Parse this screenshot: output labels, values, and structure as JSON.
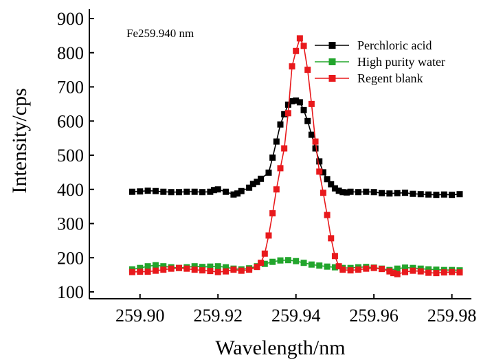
{
  "chart_data": {
    "type": "line",
    "annotation": "Fe259.940 nm",
    "xlabel": "Wavelength/nm",
    "ylabel": "Intensity/cps",
    "xlim": [
      259.887,
      259.985
    ],
    "ylim": [
      100,
      900
    ],
    "x_ticks": [
      "259.90",
      "259.92",
      "259.94",
      "259.96",
      "259.98"
    ],
    "x_tick_values": [
      259.9,
      259.92,
      259.94,
      259.96,
      259.98
    ],
    "y_ticks": [
      "100",
      "200",
      "300",
      "400",
      "500",
      "600",
      "700",
      "800",
      "900"
    ],
    "y_tick_values": [
      100,
      200,
      300,
      400,
      500,
      600,
      700,
      800,
      900
    ],
    "grid": false,
    "legend_position": "top-right",
    "series": [
      {
        "name": "Perchloric acid",
        "color": "#000000",
        "x": [
          259.898,
          259.9,
          259.902,
          259.904,
          259.906,
          259.908,
          259.91,
          259.912,
          259.914,
          259.916,
          259.918,
          259.919,
          259.92,
          259.922,
          259.924,
          259.925,
          259.926,
          259.928,
          259.929,
          259.93,
          259.931,
          259.933,
          259.934,
          259.935,
          259.936,
          259.937,
          259.938,
          259.939,
          259.94,
          259.941,
          259.942,
          259.943,
          259.944,
          259.945,
          259.946,
          259.947,
          259.948,
          259.949,
          259.95,
          259.951,
          259.952,
          259.953,
          259.954,
          259.956,
          259.958,
          259.96,
          259.962,
          259.964,
          259.966,
          259.968,
          259.97,
          259.972,
          259.974,
          259.976,
          259.978,
          259.98,
          259.982
        ],
        "values": [
          393,
          394,
          396,
          395,
          393,
          392,
          392,
          393,
          393,
          392,
          393,
          398,
          400,
          393,
          385,
          388,
          395,
          405,
          416,
          422,
          431,
          449,
          493,
          540,
          590,
          620,
          648,
          658,
          660,
          655,
          632,
          600,
          560,
          520,
          482,
          450,
          430,
          415,
          403,
          396,
          392,
          391,
          393,
          392,
          393,
          392,
          389,
          388,
          389,
          390,
          387,
          386,
          385,
          384,
          385,
          384,
          386
        ]
      },
      {
        "name": "High purity water",
        "color": "#22a52c",
        "x": [
          259.898,
          259.9,
          259.902,
          259.904,
          259.906,
          259.908,
          259.91,
          259.912,
          259.914,
          259.916,
          259.918,
          259.92,
          259.922,
          259.924,
          259.926,
          259.928,
          259.93,
          259.932,
          259.934,
          259.936,
          259.938,
          259.94,
          259.942,
          259.944,
          259.946,
          259.948,
          259.95,
          259.952,
          259.954,
          259.956,
          259.958,
          259.96,
          259.962,
          259.964,
          259.966,
          259.968,
          259.97,
          259.972,
          259.974,
          259.976,
          259.978,
          259.98,
          259.982
        ],
        "values": [
          166,
          170,
          175,
          178,
          175,
          172,
          170,
          172,
          175,
          173,
          174,
          175,
          172,
          168,
          166,
          169,
          175,
          182,
          188,
          192,
          193,
          190,
          185,
          180,
          177,
          174,
          172,
          170,
          170,
          172,
          173,
          171,
          168,
          164,
          168,
          171,
          170,
          168,
          166,
          165,
          164,
          164,
          163
        ]
      },
      {
        "name": "Regent blank",
        "color": "#e8191c",
        "x": [
          259.898,
          259.9,
          259.902,
          259.904,
          259.906,
          259.908,
          259.91,
          259.912,
          259.914,
          259.916,
          259.918,
          259.92,
          259.922,
          259.924,
          259.926,
          259.928,
          259.93,
          259.931,
          259.932,
          259.933,
          259.934,
          259.935,
          259.936,
          259.937,
          259.938,
          259.939,
          259.94,
          259.941,
          259.942,
          259.943,
          259.944,
          259.945,
          259.946,
          259.947,
          259.948,
          259.949,
          259.95,
          259.951,
          259.952,
          259.954,
          259.956,
          259.958,
          259.96,
          259.962,
          259.964,
          259.965,
          259.966,
          259.968,
          259.97,
          259.972,
          259.974,
          259.976,
          259.978,
          259.98,
          259.982
        ],
        "values": [
          158,
          159,
          159,
          162,
          165,
          168,
          170,
          168,
          165,
          163,
          161,
          158,
          160,
          165,
          162,
          165,
          173,
          185,
          212,
          265,
          330,
          400,
          462,
          520,
          623,
          760,
          805,
          842,
          820,
          750,
          650,
          540,
          452,
          390,
          325,
          257,
          205,
          175,
          165,
          163,
          165,
          168,
          170,
          167,
          160,
          155,
          152,
          158,
          162,
          160,
          156,
          155,
          157,
          158,
          157
        ]
      }
    ]
  }
}
